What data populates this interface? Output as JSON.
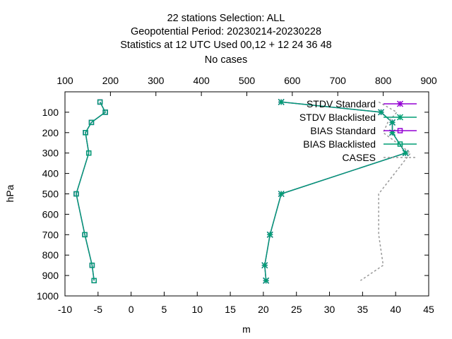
{
  "chart_data": {
    "type": "line",
    "title": [
      "22 stations Selection: ALL",
      "Geopotential  Period: 20230214-20230228",
      "Statistics at 12 UTC  Used  00,12  + 12 24 36 48",
      "No cases"
    ],
    "xlabel": "m",
    "ylabel": "hPa",
    "xlim": [
      -10,
      45
    ],
    "ylim": [
      1000,
      0
    ],
    "x2lim": [
      100,
      900
    ],
    "x_ticks": [
      "-10",
      "-5",
      "0",
      "5",
      "10",
      "15",
      "20",
      "25",
      "30",
      "35",
      "40",
      "45"
    ],
    "y_ticks": [
      "100",
      "200",
      "300",
      "400",
      "500",
      "600",
      "700",
      "800",
      "900",
      "1000"
    ],
    "x2_ticks": [
      "100",
      "200",
      "300",
      "400",
      "500",
      "600",
      "700",
      "800",
      "900"
    ],
    "legend_position": "top-right",
    "grid": false,
    "series": [
      {
        "name": "STDV Standard",
        "color": "#9400d3",
        "marker": "star",
        "points": [
          [
            22.7,
            50
          ],
          [
            37.8,
            100
          ],
          [
            39.5,
            150
          ],
          [
            39.5,
            200
          ],
          [
            41.5,
            300
          ],
          [
            22.7,
            500
          ],
          [
            21.0,
            700
          ],
          [
            20.2,
            850
          ],
          [
            20.4,
            925
          ]
        ]
      },
      {
        "name": "STDV Blacklisted",
        "color": "#009e73",
        "marker": "star",
        "points": [
          [
            22.7,
            50
          ],
          [
            37.8,
            100
          ],
          [
            39.5,
            150
          ],
          [
            39.5,
            200
          ],
          [
            41.5,
            300
          ],
          [
            22.7,
            500
          ],
          [
            21.0,
            700
          ],
          [
            20.2,
            850
          ],
          [
            20.4,
            925
          ]
        ]
      },
      {
        "name": "BIAS Standard",
        "color": "#9400d3",
        "marker": "square",
        "points": [
          [
            -4.7,
            50
          ],
          [
            -3.9,
            100
          ],
          [
            -6.0,
            150
          ],
          [
            -6.9,
            200
          ],
          [
            -6.4,
            300
          ],
          [
            -8.3,
            500
          ],
          [
            -7.0,
            700
          ],
          [
            -5.9,
            850
          ],
          [
            -5.6,
            925
          ]
        ]
      },
      {
        "name": "BIAS Blacklisted",
        "color": "#009e73",
        "marker": "square",
        "points": [
          [
            -4.7,
            50
          ],
          [
            -3.9,
            100
          ],
          [
            -6.0,
            150
          ],
          [
            -6.9,
            200
          ],
          [
            -6.4,
            300
          ],
          [
            -8.3,
            500
          ],
          [
            -7.0,
            700
          ],
          [
            -5.9,
            850
          ],
          [
            -5.6,
            925
          ]
        ]
      },
      {
        "name": "CASES",
        "color": "#999999",
        "axis": "x2",
        "dashed": true,
        "points": [
          [
            790,
            50
          ],
          [
            830,
            100
          ],
          [
            810,
            150
          ],
          [
            800,
            200
          ],
          [
            860,
            300
          ],
          [
            790,
            500
          ],
          [
            790,
            700
          ],
          [
            800,
            850
          ],
          [
            750,
            925
          ]
        ]
      }
    ]
  }
}
